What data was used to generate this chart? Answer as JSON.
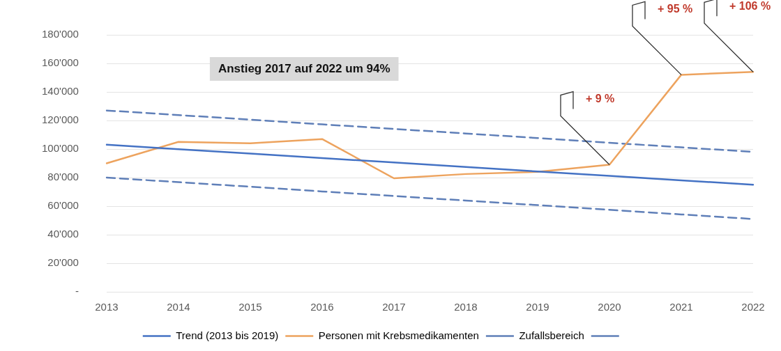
{
  "chart_data": {
    "type": "line",
    "categories": [
      "2013",
      "2014",
      "2015",
      "2016",
      "2017",
      "2018",
      "2019",
      "2020",
      "2021",
      "2022"
    ],
    "series": [
      {
        "name": "Trend (2013 bis 2019)",
        "color": "#4472c4",
        "values": [
          103000,
          99900,
          96800,
          93700,
          90600,
          87400,
          84300,
          81200,
          78100,
          75000
        ]
      },
      {
        "name": "Personen mit Krebsmedikamenten",
        "color": "#eda35e",
        "values": [
          90000,
          105000,
          104000,
          107000,
          79500,
          82500,
          84000,
          89000,
          152000,
          154000
        ]
      },
      {
        "name": "Zufallsbereich",
        "color": "#5f7fb8",
        "line_style": "dashed",
        "values": [
          127000,
          123800,
          120600,
          117300,
          114100,
          110900,
          107700,
          104400,
          101200,
          98000
        ]
      },
      {
        "color": "#5f7fb8",
        "line_style": "dashed",
        "values": [
          80000,
          76800,
          73600,
          70300,
          67100,
          63900,
          60700,
          57400,
          54200,
          51000
        ]
      }
    ],
    "ylim": [
      0,
      180000
    ],
    "yticks": [
      {
        "value": 0,
        "label": "-"
      },
      {
        "value": 20000,
        "label": "20'000"
      },
      {
        "value": 40000,
        "label": "40'000"
      },
      {
        "value": 60000,
        "label": "60'000"
      },
      {
        "value": 80000,
        "label": "80'000"
      },
      {
        "value": 100000,
        "label": "100'000"
      },
      {
        "value": 120000,
        "label": "120'000"
      },
      {
        "value": 140000,
        "label": "140'000"
      },
      {
        "value": 160000,
        "label": "160'000"
      },
      {
        "value": 180000,
        "label": "180'000"
      }
    ],
    "grid": "y",
    "legend": "bottom",
    "marker": "none",
    "line_style": "solid",
    "annotations": [
      "Anstieg 2017 auf 2022 um 94%",
      {
        "text": "+ 9 %",
        "x": "2020",
        "y": 89000
      },
      {
        "text": "+ 95 %",
        "x": "2021",
        "y": 152000
      },
      {
        "text": "+ 106 %",
        "x": "2022",
        "y": 154000
      }
    ]
  }
}
